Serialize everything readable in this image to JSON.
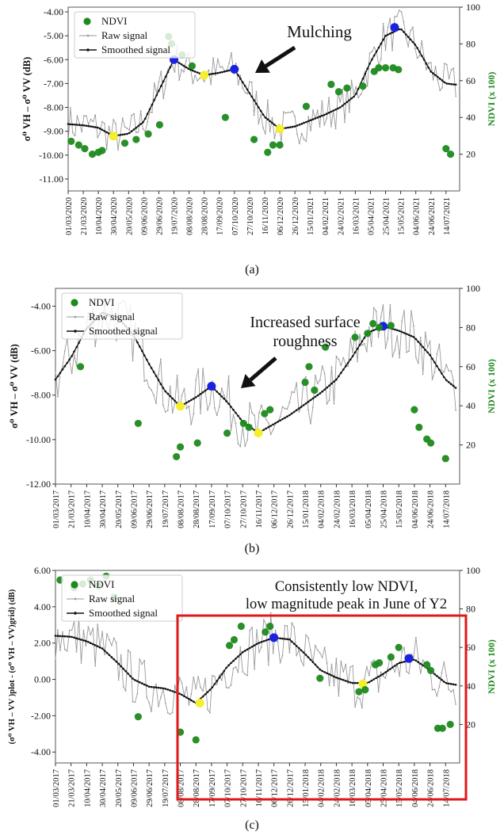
{
  "colors": {
    "ndvi": "#1e8a1e",
    "raw": "#9a9a9a",
    "smoothed": "#111111",
    "peak_marker": "#1a22e0",
    "trough_marker": "#f5ee2a",
    "red_box": "#e01818",
    "ndvi_axis_label": "#1e8a1e"
  },
  "legend": {
    "ndvi": "NDVI",
    "raw": "Raw signal",
    "smoothed": "Smoothed signal"
  },
  "date_ticks_a": [
    "01/03/2020",
    "21/03/2020",
    "10/04/2020",
    "30/04/2020",
    "20/05/2020",
    "09/06/2020",
    "29/06/2020",
    "19/07/2020",
    "08/08/2020",
    "28/08/2020",
    "17/09/2020",
    "07/10/2020",
    "27/10/2020",
    "16/11/2020",
    "06/12/2020",
    "26/12/2020",
    "15/01/2021",
    "04/02/2021",
    "24/02/2021",
    "16/03/2021",
    "05/04/2021",
    "25/04/2021",
    "15/05/2021",
    "04/06/2021",
    "24/06/2021",
    "14/07/2021"
  ],
  "date_ticks_bc": [
    "01/03/2017",
    "21/03/2017",
    "10/04/2017",
    "30/04/2017",
    "20/05/2017",
    "09/06/2017",
    "29/06/2017",
    "19/07/2017",
    "08/08/2017",
    "28/08/2017",
    "17/09/2017",
    "07/10/2017",
    "27/10/2017",
    "16/11/2017",
    "06/12/2017",
    "26/12/2017",
    "15/01/2018",
    "04/02/2018",
    "24/02/2018",
    "16/03/2018",
    "05/04/2018",
    "25/04/2018",
    "15/05/2018",
    "04/06/2018",
    "24/06/2018",
    "14/07/2018"
  ],
  "chart_data": [
    {
      "id": "a",
      "caption": "(a)",
      "type": "line",
      "ylabel": "σ⁰ VH – σ⁰ VV (dB)",
      "y2label": "NDVI (x 100)",
      "ylim": [
        -11.5,
        -3.8
      ],
      "y2lim": [
        0,
        100
      ],
      "yticks": [
        -4.0,
        -5.0,
        -6.0,
        -7.0,
        -8.0,
        -9.0,
        -10.0,
        -11.0
      ],
      "ytick_labels": [
        "-4.00",
        "-5.00",
        "-6.00",
        "-7.00",
        "-8.00",
        "-9.00",
        "-10.00",
        "-11.00"
      ],
      "y2ticks": [
        20,
        40,
        60,
        80,
        100
      ],
      "annotation": "Mulching",
      "legend_position": "top-left",
      "x_start": "2020-03-01",
      "x_end": "2021-08-01",
      "smoothed": [
        [
          "2020-03-01",
          -8.7
        ],
        [
          "2020-03-21",
          -8.75
        ],
        [
          "2020-04-10",
          -8.85
        ],
        [
          "2020-04-30",
          -9.2
        ],
        [
          "2020-05-20",
          -9.1
        ],
        [
          "2020-06-09",
          -8.6
        ],
        [
          "2020-06-29",
          -7.3
        ],
        [
          "2020-07-19",
          -6.0
        ],
        [
          "2020-08-08",
          -6.4
        ],
        [
          "2020-08-28",
          -6.65
        ],
        [
          "2020-09-17",
          -6.55
        ],
        [
          "2020-10-07",
          -6.4
        ],
        [
          "2020-10-27",
          -7.4
        ],
        [
          "2020-11-16",
          -8.4
        ],
        [
          "2020-12-06",
          -8.9
        ],
        [
          "2020-12-26",
          -8.8
        ],
        [
          "2021-01-15",
          -8.55
        ],
        [
          "2021-02-04",
          -8.3
        ],
        [
          "2021-02-24",
          -8.0
        ],
        [
          "2021-03-16",
          -7.5
        ],
        [
          "2021-04-05",
          -6.1
        ],
        [
          "2021-04-25",
          -5.0
        ],
        [
          "2021-05-15",
          -4.7
        ],
        [
          "2021-06-04",
          -5.4
        ],
        [
          "2021-06-24",
          -6.5
        ],
        [
          "2021-07-14",
          -7.0
        ],
        [
          "2021-07-28",
          -7.05
        ]
      ],
      "peaks": [
        [
          "2020-07-19",
          -6.0
        ],
        [
          "2020-10-07",
          -6.4
        ],
        [
          "2021-05-07",
          -4.65
        ]
      ],
      "troughs": [
        [
          "2020-04-30",
          -9.2
        ],
        [
          "2020-08-28",
          -6.65
        ],
        [
          "2020-12-06",
          -8.9
        ]
      ],
      "ndvi": [
        [
          "2020-03-05",
          27
        ],
        [
          "2020-03-15",
          25
        ],
        [
          "2020-03-23",
          23
        ],
        [
          "2020-04-02",
          20
        ],
        [
          "2020-04-10",
          21
        ],
        [
          "2020-04-15",
          22
        ],
        [
          "2020-05-15",
          26
        ],
        [
          "2020-05-30",
          28
        ],
        [
          "2020-06-15",
          31
        ],
        [
          "2020-06-30",
          36
        ],
        [
          "2020-07-12",
          84
        ],
        [
          "2020-07-16",
          80
        ],
        [
          "2020-07-30",
          74
        ],
        [
          "2020-08-12",
          68
        ],
        [
          "2020-09-25",
          40
        ],
        [
          "2020-11-02",
          28
        ],
        [
          "2020-11-20",
          21
        ],
        [
          "2020-11-27",
          25
        ],
        [
          "2020-12-06",
          25
        ],
        [
          "2021-01-10",
          46
        ],
        [
          "2021-02-12",
          58
        ],
        [
          "2021-02-22",
          54
        ],
        [
          "2021-03-05",
          56
        ],
        [
          "2021-03-26",
          57
        ],
        [
          "2021-04-10",
          65
        ],
        [
          "2021-04-16",
          67
        ],
        [
          "2021-04-25",
          67
        ],
        [
          "2021-05-05",
          67
        ],
        [
          "2021-05-12",
          66
        ],
        [
          "2021-07-14",
          23
        ],
        [
          "2021-07-20",
          20
        ]
      ],
      "raw_jitter": 0.45
    },
    {
      "id": "b",
      "caption": "(b)",
      "type": "line",
      "ylabel": "σ⁰ VH – σ⁰ VV (dB)",
      "y2label": "NDVI (x 100)",
      "ylim": [
        -12.0,
        -3.2
      ],
      "y2lim": [
        0,
        100
      ],
      "yticks": [
        -4.0,
        -6.0,
        -8.0,
        -10.0,
        -12.0
      ],
      "ytick_labels": [
        "-4.00",
        "-6.00",
        "-8.00",
        "-10.00",
        "-12.00"
      ],
      "y2ticks": [
        20,
        40,
        60,
        80,
        100
      ],
      "annotation": "Increased surface roughness",
      "legend_position": "top-left",
      "x_start": "2017-03-01",
      "x_end": "2018-08-01",
      "smoothed": [
        [
          "2017-03-01",
          -7.3
        ],
        [
          "2017-03-21",
          -6.3
        ],
        [
          "2017-04-10",
          -5.0
        ],
        [
          "2017-04-30",
          -4.3
        ],
        [
          "2017-05-20",
          -4.5
        ],
        [
          "2017-06-09",
          -5.3
        ],
        [
          "2017-06-29",
          -6.6
        ],
        [
          "2017-07-19",
          -7.8
        ],
        [
          "2017-08-08",
          -8.5
        ],
        [
          "2017-08-28",
          -8.1
        ],
        [
          "2017-09-17",
          -7.6
        ],
        [
          "2017-10-07",
          -8.3
        ],
        [
          "2017-10-27",
          -9.2
        ],
        [
          "2017-11-16",
          -9.7
        ],
        [
          "2017-12-06",
          -9.3
        ],
        [
          "2017-12-26",
          -8.9
        ],
        [
          "2018-01-15",
          -8.4
        ],
        [
          "2018-02-04",
          -7.9
        ],
        [
          "2018-02-24",
          -7.3
        ],
        [
          "2018-03-16",
          -6.3
        ],
        [
          "2018-04-05",
          -5.2
        ],
        [
          "2018-04-25",
          -4.9
        ],
        [
          "2018-05-15",
          -5.1
        ],
        [
          "2018-06-04",
          -5.4
        ],
        [
          "2018-06-24",
          -6.2
        ],
        [
          "2018-07-14",
          -7.3
        ],
        [
          "2018-07-28",
          -7.7
        ]
      ],
      "peaks": [
        [
          "2017-09-17",
          -7.6
        ],
        [
          "2018-04-25",
          -4.9
        ]
      ],
      "troughs": [
        [
          "2017-08-08",
          -8.5
        ],
        [
          "2017-11-16",
          -9.7
        ]
      ],
      "ndvi": [
        [
          "2017-04-02",
          60
        ],
        [
          "2017-06-15",
          31
        ],
        [
          "2017-08-03",
          14
        ],
        [
          "2017-08-08",
          19
        ],
        [
          "2017-08-30",
          21
        ],
        [
          "2017-10-07",
          26
        ],
        [
          "2017-10-28",
          31
        ],
        [
          "2017-11-04",
          29
        ],
        [
          "2017-11-24",
          36
        ],
        [
          "2017-12-01",
          38
        ],
        [
          "2018-01-15",
          52
        ],
        [
          "2018-01-20",
          60
        ],
        [
          "2018-01-27",
          48
        ],
        [
          "2018-02-10",
          70
        ],
        [
          "2018-03-20",
          75
        ],
        [
          "2018-04-05",
          77
        ],
        [
          "2018-04-12",
          82
        ],
        [
          "2018-04-20",
          80
        ],
        [
          "2018-05-05",
          81
        ],
        [
          "2018-06-04",
          38
        ],
        [
          "2018-06-10",
          29
        ],
        [
          "2018-06-20",
          23
        ],
        [
          "2018-06-25",
          21
        ],
        [
          "2018-07-14",
          13
        ]
      ],
      "raw_jitter": 0.7
    },
    {
      "id": "c",
      "caption": "(c)",
      "type": "line",
      "ylabel": "(σ⁰ VH – VV )plot - (σ⁰ VH – VV)grid) (dB)",
      "y2label": "NDVI (x 100)",
      "ylim": [
        -4.6,
        6.0
      ],
      "y2lim": [
        0,
        100
      ],
      "yticks": [
        6.0,
        4.0,
        2.0,
        0.0,
        -2.0,
        -4.0
      ],
      "ytick_labels": [
        "6.00",
        "4.00",
        "2.00",
        "0.00",
        "-2.00",
        "-4.00"
      ],
      "y2ticks": [
        20,
        40,
        60,
        80,
        100
      ],
      "annotation": "Consistently low NDVI, low magnitude peak in June of Y2",
      "legend_position": "top-left",
      "x_start": "2017-03-01",
      "x_end": "2018-08-01",
      "smoothed": [
        [
          "2017-03-01",
          2.4
        ],
        [
          "2017-03-21",
          2.35
        ],
        [
          "2017-04-10",
          2.1
        ],
        [
          "2017-04-30",
          1.7
        ],
        [
          "2017-05-20",
          0.9
        ],
        [
          "2017-06-09",
          0.0
        ],
        [
          "2017-06-29",
          -0.4
        ],
        [
          "2017-07-19",
          -0.5
        ],
        [
          "2017-08-08",
          -0.8
        ],
        [
          "2017-08-28",
          -1.3
        ],
        [
          "2017-09-17",
          -0.5
        ],
        [
          "2017-10-07",
          0.7
        ],
        [
          "2017-10-27",
          1.5
        ],
        [
          "2017-11-16",
          2.0
        ],
        [
          "2017-12-06",
          2.3
        ],
        [
          "2017-12-26",
          2.2
        ],
        [
          "2018-01-15",
          1.4
        ],
        [
          "2018-02-04",
          0.5
        ],
        [
          "2018-02-24",
          0.1
        ],
        [
          "2018-03-16",
          -0.2
        ],
        [
          "2018-04-05",
          -0.2
        ],
        [
          "2018-04-25",
          0.3
        ],
        [
          "2018-05-15",
          0.9
        ],
        [
          "2018-06-04",
          1.1
        ],
        [
          "2018-06-24",
          0.5
        ],
        [
          "2018-07-14",
          -0.2
        ],
        [
          "2018-07-28",
          -0.3
        ]
      ],
      "peaks": [
        [
          "2017-12-06",
          2.3
        ],
        [
          "2018-05-28",
          1.15
        ]
      ],
      "troughs": [
        [
          "2017-09-02",
          -1.3
        ],
        [
          "2018-03-30",
          -0.25
        ]
      ],
      "ndvi": [
        [
          "2017-03-07",
          95
        ],
        [
          "2017-03-25",
          91
        ],
        [
          "2017-04-05",
          93
        ],
        [
          "2017-04-15",
          95
        ],
        [
          "2017-04-25",
          92
        ],
        [
          "2017-05-05",
          97
        ],
        [
          "2017-05-15",
          86
        ],
        [
          "2017-06-15",
          24
        ],
        [
          "2017-08-08",
          16
        ],
        [
          "2017-08-28",
          12
        ],
        [
          "2017-10-10",
          61
        ],
        [
          "2017-10-16",
          64
        ],
        [
          "2017-10-25",
          71
        ],
        [
          "2017-11-25",
          68
        ],
        [
          "2017-12-01",
          71
        ],
        [
          "2018-02-03",
          44
        ],
        [
          "2018-03-25",
          37
        ],
        [
          "2018-04-02",
          38
        ],
        [
          "2018-04-15",
          51
        ],
        [
          "2018-04-20",
          52
        ],
        [
          "2018-05-05",
          55
        ],
        [
          "2018-05-15",
          60
        ],
        [
          "2018-06-20",
          51
        ],
        [
          "2018-06-25",
          48
        ],
        [
          "2018-07-04",
          18
        ],
        [
          "2018-07-10",
          18
        ],
        [
          "2018-07-20",
          20
        ]
      ],
      "raw_jitter": 0.8
    }
  ]
}
